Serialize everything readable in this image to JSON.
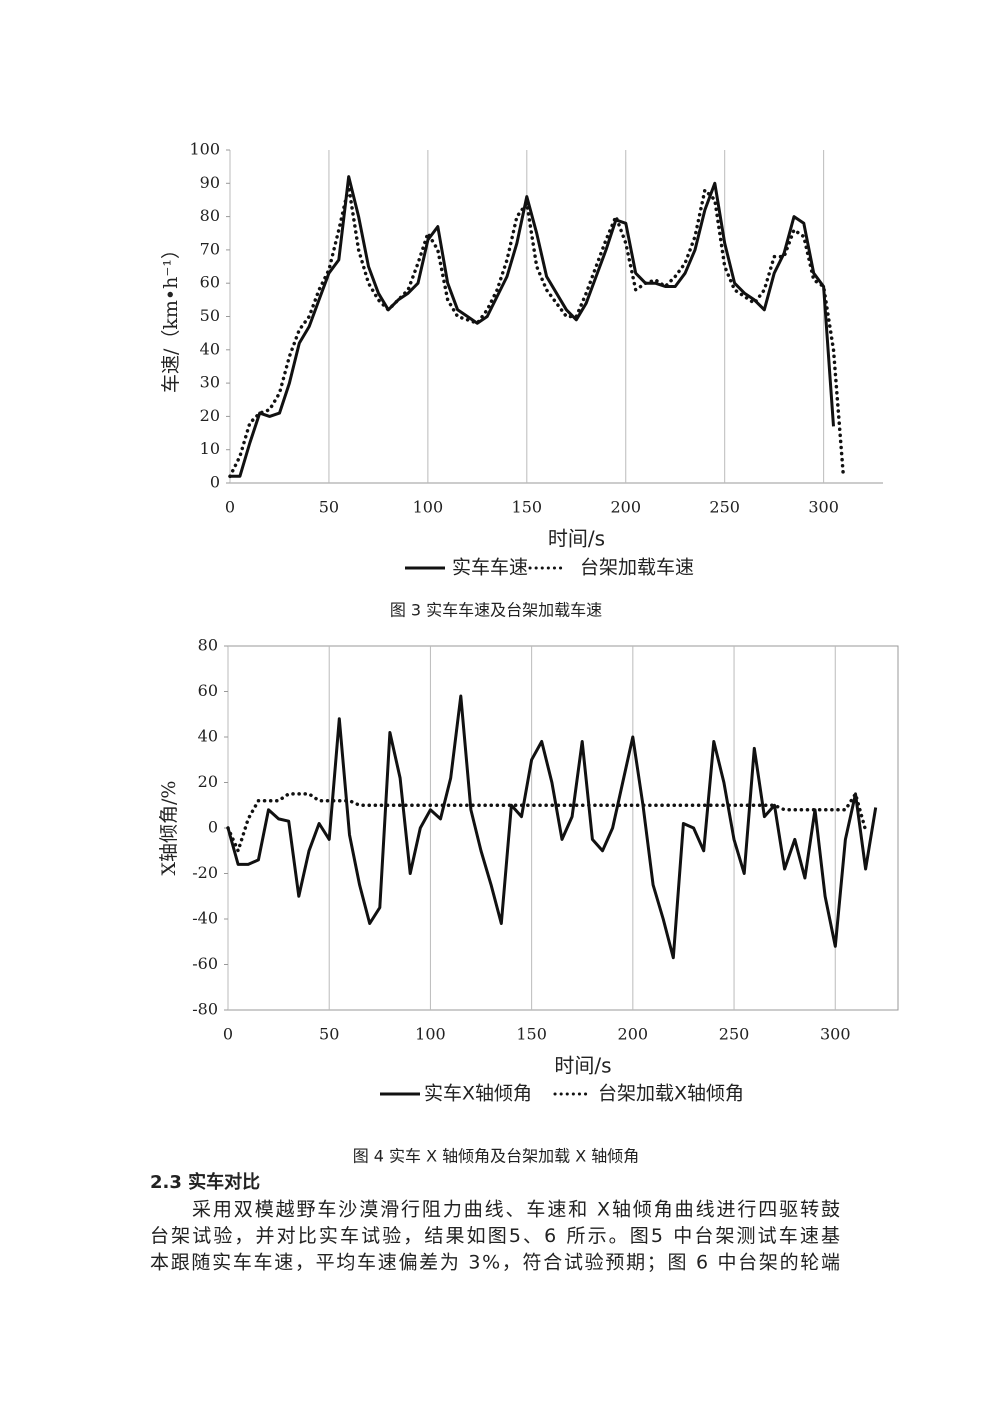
{
  "chart_data": [
    {
      "type": "line",
      "caption": "图 3 实车车速及台架加载车速",
      "xlabel": "时间/s",
      "ylabel": "车速/（km•h⁻¹）",
      "x": [
        0,
        5,
        10,
        15,
        20,
        25,
        30,
        35,
        40,
        45,
        50,
        55,
        60,
        65,
        70,
        75,
        80,
        85,
        90,
        95,
        100,
        105,
        110,
        115,
        120,
        125,
        130,
        135,
        140,
        145,
        150,
        155,
        160,
        165,
        170,
        175,
        180,
        185,
        190,
        195,
        200,
        205,
        210,
        215,
        220,
        225,
        230,
        235,
        240,
        245,
        250,
        255,
        260,
        265,
        270,
        275,
        280,
        285,
        290,
        295,
        300,
        305,
        310
      ],
      "series": [
        {
          "name": "实车车速",
          "color": "#111111",
          "style": "solid",
          "values": [
            2,
            2,
            12,
            21,
            20,
            21,
            30,
            42,
            47,
            55,
            63,
            67,
            92,
            80,
            65,
            57,
            52,
            55,
            57,
            60,
            73,
            77,
            60,
            52,
            50,
            48,
            50,
            56,
            62,
            72,
            86,
            75,
            62,
            57,
            52,
            49,
            54,
            62,
            70,
            79,
            78,
            63,
            60,
            60,
            59,
            59,
            63,
            70,
            82,
            90,
            72,
            60,
            57,
            55,
            52,
            63,
            69,
            80,
            78,
            63,
            59,
            17,
            null
          ]
        },
        {
          "name": "台架加载车速",
          "color": "#111111",
          "style": "dotted",
          "values": [
            2,
            8,
            18,
            21,
            22,
            27,
            38,
            46,
            50,
            58,
            64,
            76,
            89,
            70,
            60,
            55,
            52,
            55,
            58,
            66,
            75,
            70,
            55,
            50,
            49,
            48,
            52,
            58,
            67,
            80,
            84,
            65,
            58,
            54,
            50,
            50,
            57,
            65,
            73,
            80,
            72,
            58,
            60,
            61,
            59,
            62,
            66,
            74,
            88,
            85,
            65,
            58,
            56,
            54,
            58,
            68,
            68,
            76,
            74,
            61,
            59,
            40,
            2
          ]
        }
      ],
      "xlim": [
        0,
        330
      ],
      "xticks": [
        0,
        50,
        100,
        150,
        200,
        250,
        300
      ],
      "ylim": [
        0,
        100
      ],
      "yticks": [
        0,
        10,
        20,
        30,
        40,
        50,
        60,
        70,
        80,
        90,
        100
      ],
      "grid": "x"
    },
    {
      "type": "line",
      "caption": "图 4 实车 X 轴倾角及台架加载 X 轴倾角",
      "xlabel": "时间/s",
      "ylabel": "X轴倾角/%",
      "x": [
        0,
        5,
        10,
        15,
        20,
        25,
        30,
        35,
        40,
        45,
        50,
        55,
        60,
        65,
        70,
        75,
        80,
        85,
        90,
        95,
        100,
        105,
        110,
        115,
        120,
        125,
        130,
        135,
        140,
        145,
        150,
        155,
        160,
        165,
        170,
        175,
        180,
        185,
        190,
        195,
        200,
        205,
        210,
        215,
        220,
        225,
        230,
        235,
        240,
        245,
        250,
        255,
        260,
        265,
        270,
        275,
        280,
        285,
        290,
        295,
        300,
        305,
        310,
        315,
        320
      ],
      "series": [
        {
          "name": "实车X轴倾角",
          "color": "#111111",
          "style": "solid",
          "values": [
            0,
            -16,
            -16,
            -14,
            8,
            4,
            3,
            -30,
            -10,
            2,
            -5,
            48,
            -3,
            -25,
            -42,
            -35,
            42,
            22,
            -20,
            0,
            8,
            4,
            22,
            58,
            8,
            -10,
            -25,
            -42,
            10,
            5,
            30,
            38,
            20,
            -5,
            5,
            38,
            -5,
            -10,
            0,
            20,
            40,
            10,
            -25,
            -40,
            -57,
            2,
            0,
            -10,
            38,
            20,
            -5,
            -20,
            35,
            5,
            10,
            -18,
            -5,
            -22,
            8,
            -30,
            -52,
            -5,
            15,
            -18,
            9
          ]
        },
        {
          "name": "台架加载X轴倾角",
          "color": "#111111",
          "style": "dotted",
          "values": [
            0,
            -10,
            4,
            12,
            12,
            12,
            15,
            15,
            15,
            12,
            12,
            12,
            12,
            10,
            10,
            10,
            10,
            10,
            10,
            10,
            10,
            10,
            10,
            10,
            10,
            10,
            10,
            10,
            10,
            10,
            10,
            10,
            10,
            10,
            10,
            10,
            10,
            10,
            10,
            10,
            10,
            10,
            10,
            10,
            10,
            10,
            10,
            10,
            10,
            10,
            10,
            10,
            10,
            10,
            10,
            8,
            8,
            8,
            8,
            8,
            8,
            8,
            15,
            -1,
            null
          ]
        }
      ],
      "xlim": [
        0,
        331
      ],
      "xticks": [
        0,
        50,
        100,
        150,
        200,
        250,
        300
      ],
      "ylim": [
        -80,
        80
      ],
      "yticks": [
        -80,
        -60,
        -40,
        -20,
        0,
        20,
        40,
        60,
        80
      ],
      "grid": "x"
    }
  ],
  "section": {
    "heading": "2.3  实车对比",
    "lines": [
      "采用双模越野车沙漠滑行阻力曲线、车速和 X轴倾角曲线进行四驱转鼓",
      "台架试验，并对比实车试验，结果如图5、6 所示。图5 中台架测试车速基",
      "本跟随实车车速，平均车速偏差为 3%，符合试验预期；图 6 中台架的轮端"
    ]
  }
}
